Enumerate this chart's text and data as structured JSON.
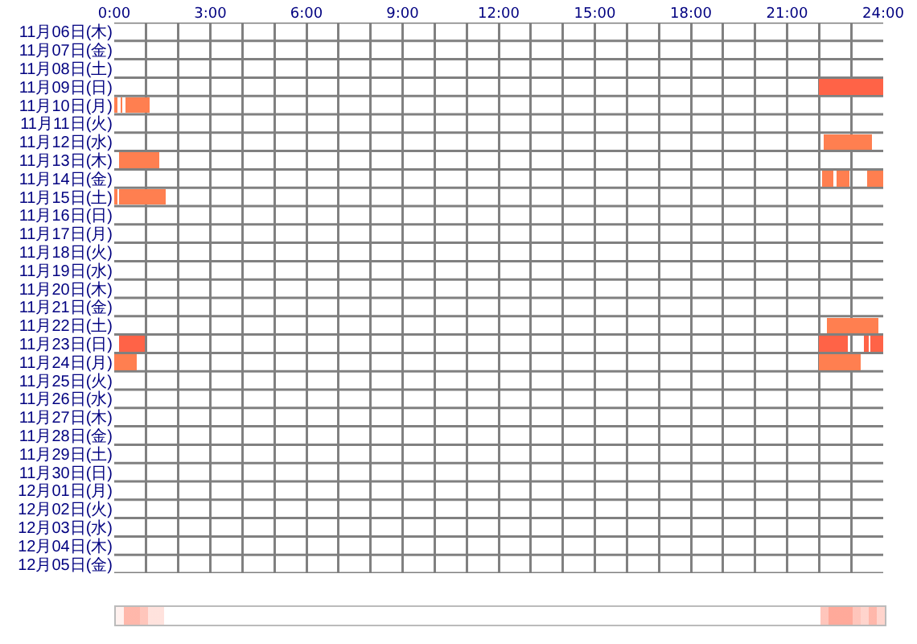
{
  "chart_data": {
    "type": "bar",
    "orientation": "horizontal",
    "categories": [
      "11月06日(木)",
      "11月07日(金)",
      "11月08日(土)",
      "11月09日(日)",
      "11月10日(月)",
      "11月11日(火)",
      "11月12日(水)",
      "11月13日(木)",
      "11月14日(金)",
      "11月15日(土)",
      "11月16日(日)",
      "11月17日(月)",
      "11月18日(火)",
      "11月19日(水)",
      "11月20日(木)",
      "11月21日(金)",
      "11月22日(土)",
      "11月23日(日)",
      "11月24日(月)",
      "11月25日(火)",
      "11月26日(水)",
      "11月27日(木)",
      "11月28日(金)",
      "11月29日(土)",
      "11月30日(日)",
      "12月01日(月)",
      "12月02日(火)",
      "12月03日(水)",
      "12月04日(木)",
      "12月05日(金)"
    ],
    "series": [
      {
        "color": "#ff6347",
        "base": [
          null,
          null,
          null,
          22,
          null,
          null,
          null,
          null,
          null,
          null,
          null,
          null,
          null,
          null,
          null,
          null,
          null,
          0.15,
          null,
          null,
          null,
          null,
          null,
          null,
          null,
          null,
          null,
          null,
          null,
          null
        ],
        "values": [
          null,
          null,
          null,
          2,
          null,
          null,
          null,
          null,
          null,
          null,
          null,
          null,
          null,
          null,
          null,
          null,
          null,
          0.8,
          null,
          null,
          null,
          null,
          null,
          null,
          null,
          null,
          null,
          null,
          null,
          null
        ]
      },
      {
        "color": "#ff6347",
        "base": [
          null,
          null,
          null,
          null,
          null,
          null,
          null,
          null,
          null,
          null,
          null,
          null,
          null,
          null,
          null,
          null,
          null,
          22,
          null,
          null,
          null,
          null,
          null,
          null,
          null,
          null,
          null,
          null,
          null,
          null
        ],
        "values": [
          null,
          null,
          null,
          null,
          null,
          null,
          null,
          null,
          null,
          null,
          null,
          null,
          null,
          null,
          null,
          null,
          null,
          0.9,
          null,
          null,
          null,
          null,
          null,
          null,
          null,
          null,
          null,
          null,
          null,
          null
        ]
      },
      {
        "color": "#ff6347",
        "base": [
          null,
          null,
          null,
          null,
          null,
          null,
          null,
          null,
          null,
          null,
          null,
          null,
          null,
          null,
          null,
          null,
          null,
          23.4,
          null,
          null,
          null,
          null,
          null,
          null,
          null,
          null,
          null,
          null,
          null,
          null
        ],
        "values": [
          null,
          null,
          null,
          null,
          null,
          null,
          null,
          null,
          null,
          null,
          null,
          null,
          null,
          null,
          null,
          null,
          null,
          0.15,
          null,
          null,
          null,
          null,
          null,
          null,
          null,
          null,
          null,
          null,
          null,
          null
        ]
      },
      {
        "color": "#ff6347",
        "base": [
          null,
          null,
          null,
          null,
          null,
          null,
          null,
          null,
          null,
          null,
          null,
          null,
          null,
          null,
          null,
          null,
          null,
          23.6,
          null,
          null,
          null,
          null,
          null,
          null,
          null,
          null,
          null,
          null,
          null,
          null
        ],
        "values": [
          null,
          null,
          null,
          null,
          null,
          null,
          null,
          null,
          null,
          null,
          null,
          null,
          null,
          null,
          null,
          null,
          null,
          0.4,
          null,
          null,
          null,
          null,
          null,
          null,
          null,
          null,
          null,
          null,
          null,
          null
        ]
      },
      {
        "color": "#ff7f50",
        "base": [
          null,
          null,
          null,
          null,
          0,
          null,
          22.15,
          0.15,
          22.1,
          0,
          null,
          null,
          null,
          null,
          null,
          null,
          22.25,
          null,
          0,
          null,
          null,
          null,
          null,
          null,
          null,
          null,
          null,
          null,
          null,
          null
        ],
        "values": [
          null,
          null,
          null,
          null,
          0.1,
          null,
          1.5,
          1.25,
          0.35,
          0.1,
          null,
          null,
          null,
          null,
          null,
          null,
          1.6,
          null,
          0.7,
          null,
          null,
          null,
          null,
          null,
          null,
          null,
          null,
          null,
          null,
          null
        ]
      },
      {
        "color": "#ff7f50",
        "base": [
          null,
          null,
          null,
          null,
          0.2,
          null,
          null,
          null,
          22.55,
          0.15,
          null,
          null,
          null,
          null,
          null,
          null,
          null,
          null,
          22,
          null,
          null,
          null,
          null,
          null,
          null,
          null,
          null,
          null,
          null,
          null
        ],
        "values": [
          null,
          null,
          null,
          null,
          0.05,
          null,
          null,
          null,
          0.4,
          1.45,
          null,
          null,
          null,
          null,
          null,
          null,
          null,
          null,
          1.3,
          null,
          null,
          null,
          null,
          null,
          null,
          null,
          null,
          null,
          null,
          null
        ]
      },
      {
        "color": "#ff7f50",
        "base": [
          null,
          null,
          null,
          null,
          0.35,
          null,
          null,
          null,
          23.5,
          null,
          null,
          null,
          null,
          null,
          null,
          null,
          null,
          null,
          null,
          null,
          null,
          null,
          null,
          null,
          null,
          null,
          null,
          null,
          null,
          null
        ],
        "values": [
          null,
          null,
          null,
          null,
          0.75,
          null,
          null,
          null,
          0.5,
          null,
          null,
          null,
          null,
          null,
          null,
          null,
          null,
          null,
          null,
          null,
          null,
          null,
          null,
          null,
          null,
          null,
          null,
          null,
          null,
          null
        ]
      }
    ],
    "xlim": [
      0,
      24
    ],
    "xticks": [
      {
        "value": 0,
        "label": "0:00"
      },
      {
        "value": 1,
        "label": null
      },
      {
        "value": 2,
        "label": null
      },
      {
        "value": 3,
        "label": "3:00"
      },
      {
        "value": 4,
        "label": null
      },
      {
        "value": 5,
        "label": null
      },
      {
        "value": 6,
        "label": "6:00"
      },
      {
        "value": 7,
        "label": null
      },
      {
        "value": 8,
        "label": null
      },
      {
        "value": 9,
        "label": "9:00"
      },
      {
        "value": 10,
        "label": null
      },
      {
        "value": 11,
        "label": null
      },
      {
        "value": 12,
        "label": "12:00"
      },
      {
        "value": 13,
        "label": null
      },
      {
        "value": 14,
        "label": null
      },
      {
        "value": 15,
        "label": "15:00"
      },
      {
        "value": 16,
        "label": null
      },
      {
        "value": 17,
        "label": null
      },
      {
        "value": 18,
        "label": "18:00"
      },
      {
        "value": 19,
        "label": null
      },
      {
        "value": 20,
        "label": null
      },
      {
        "value": 21,
        "label": "21:00"
      },
      {
        "value": 22,
        "label": null
      },
      {
        "value": 23,
        "label": null
      },
      {
        "value": 24,
        "label": "24:00"
      }
    ],
    "grid": true
  }
}
